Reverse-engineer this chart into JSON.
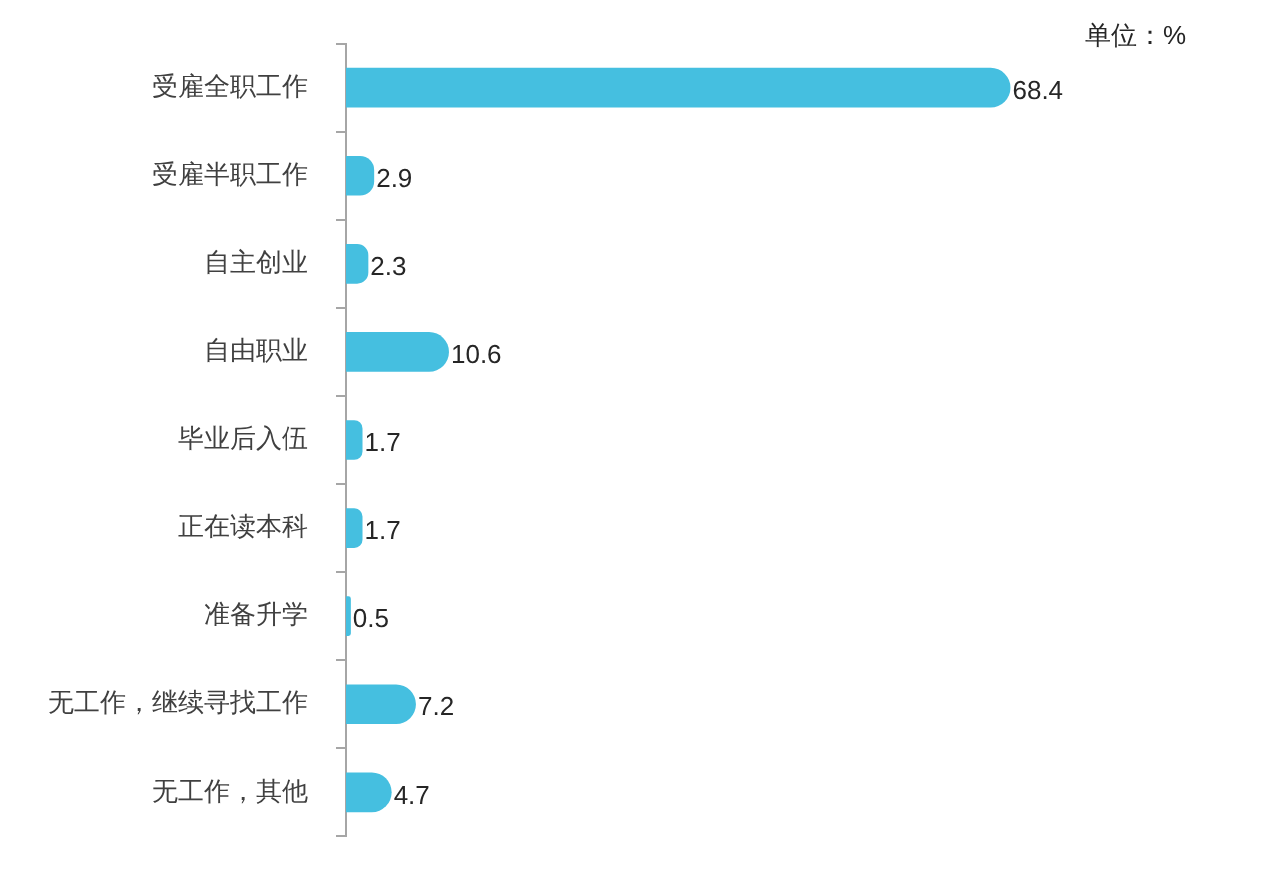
{
  "chart_data": {
    "type": "bar",
    "orientation": "horizontal",
    "categories": [
      "受雇全职工作",
      "受雇半职工作",
      "自主创业",
      "自由职业",
      "毕业后入伍",
      "正在读本科",
      "准备升学",
      "无工作，继续寻找工作",
      "无工作，其他"
    ],
    "values": [
      68.4,
      2.9,
      2.3,
      10.6,
      1.7,
      1.7,
      0.5,
      7.2,
      4.7
    ],
    "color": "#45bfe0",
    "data_labels": true,
    "legend": false,
    "annotations": [
      "单位：%"
    ]
  }
}
